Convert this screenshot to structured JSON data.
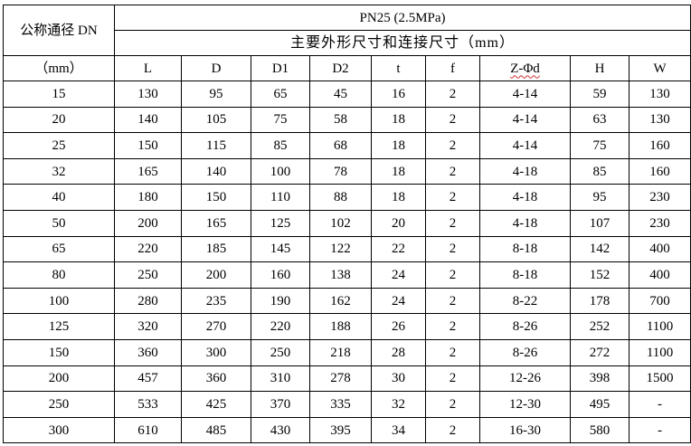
{
  "table": {
    "dn_header": "公称通径 DN",
    "dn_unit": "（mm）",
    "pressure_header": "PN25 (2.5MPa)",
    "dims_header": "主要外形尺寸和连接尺寸（mm）",
    "columns": [
      "L",
      "D",
      "D1",
      "D2",
      "t",
      "f",
      "Z-Φd",
      "H",
      "W"
    ],
    "rows": [
      [
        "15",
        "130",
        "95",
        "65",
        "45",
        "16",
        "2",
        "4-14",
        "59",
        "130"
      ],
      [
        "20",
        "140",
        "105",
        "75",
        "58",
        "18",
        "2",
        "4-14",
        "63",
        "130"
      ],
      [
        "25",
        "150",
        "115",
        "85",
        "68",
        "18",
        "2",
        "4-14",
        "75",
        "160"
      ],
      [
        "32",
        "165",
        "140",
        "100",
        "78",
        "18",
        "2",
        "4-18",
        "85",
        "160"
      ],
      [
        "40",
        "180",
        "150",
        "110",
        "88",
        "18",
        "2",
        "4-18",
        "95",
        "230"
      ],
      [
        "50",
        "200",
        "165",
        "125",
        "102",
        "20",
        "2",
        "4-18",
        "107",
        "230"
      ],
      [
        "65",
        "220",
        "185",
        "145",
        "122",
        "22",
        "2",
        "8-18",
        "142",
        "400"
      ],
      [
        "80",
        "250",
        "200",
        "160",
        "138",
        "24",
        "2",
        "8-18",
        "152",
        "400"
      ],
      [
        "100",
        "280",
        "235",
        "190",
        "162",
        "24",
        "2",
        "8-22",
        "178",
        "700"
      ],
      [
        "125",
        "320",
        "270",
        "220",
        "188",
        "26",
        "2",
        "8-26",
        "252",
        "1100"
      ],
      [
        "150",
        "360",
        "300",
        "250",
        "218",
        "28",
        "2",
        "8-26",
        "272",
        "1100"
      ],
      [
        "200",
        "457",
        "360",
        "310",
        "278",
        "30",
        "2",
        "12-26",
        "398",
        "1500"
      ],
      [
        "250",
        "533",
        "425",
        "370",
        "335",
        "32",
        "2",
        "12-30",
        "495",
        "-"
      ],
      [
        "300",
        "610",
        "485",
        "430",
        "395",
        "34",
        "2",
        "16-30",
        "580",
        "-"
      ]
    ]
  }
}
